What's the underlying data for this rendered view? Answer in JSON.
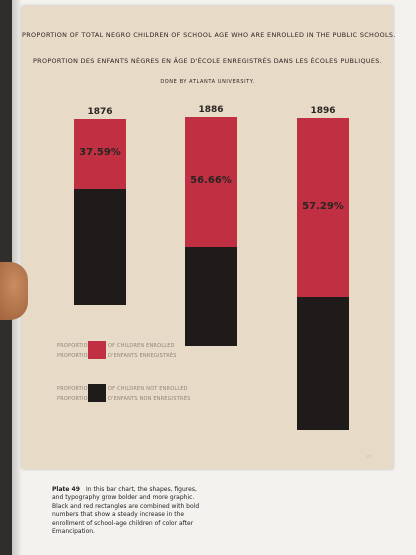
{
  "plate": {
    "title_en": "PROPORTION OF TOTAL NEGRO CHILDREN OF SCHOOL AGE WHO ARE ENROLLED IN THE PUBLIC SCHOOLS.",
    "title_fr": "PROPORTION DES ENFANTS NÈGRES EN ÂGE D'ÉCOLE ENREGISTRÉS DANS LES ÉCOLES PUBLIQUES.",
    "credit": "DONE BY ATLANTA UNIVERSITY."
  },
  "chart_data": {
    "type": "bar",
    "stacked": true,
    "categories": [
      "1876",
      "1886",
      "1896"
    ],
    "series": [
      {
        "name": "PROPORTION OF CHILDREN ENROLLED",
        "values": [
          37.59,
          56.66,
          57.29
        ]
      },
      {
        "name": "PROPORTION OF CHILDREN NOT ENROLLED",
        "values": [
          62.41,
          43.34,
          42.71
        ]
      }
    ],
    "labels": [
      "37.59%",
      "56.66%",
      "57.29%"
    ],
    "colors": {
      "enrolled": "#c12f43",
      "not_enrolled": "#1f1b1a"
    }
  },
  "legend": {
    "enrolled": {
      "left_en": "PROPORTION",
      "left_fr": "PROPORTION",
      "right_en": "OF CHILDREN ENROLLED",
      "right_fr": "D'ENFANTS ENREGISTRÉS"
    },
    "not_enrolled": {
      "left_en": "PROPORTION",
      "left_fr": "PROPORTION",
      "right_en": "OF CHILDREN NOT ENROLLED",
      "right_fr": "D'ENFANTS NON ENREGISTRÉS"
    }
  },
  "caption": {
    "label": "Plate 49",
    "text": "In this bar chart, the shapes, figures, and typography grow bolder and more graphic. Black and red rectangles are combined with bold numbers that show a steady increase in the enrollment of school-age children of color after Emancipation."
  }
}
